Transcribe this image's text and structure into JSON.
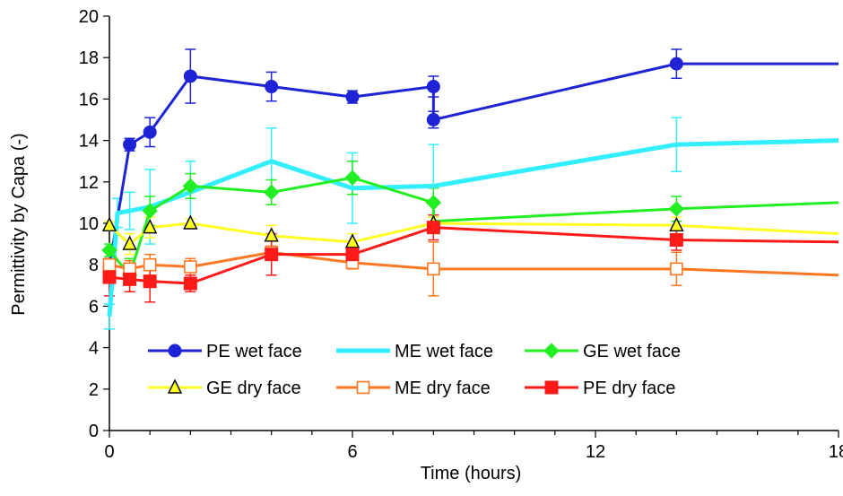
{
  "chart_data": {
    "type": "line",
    "xlabel": "Time (hours)",
    "ylabel": "Permittivity by Capa (-)",
    "xlim": [
      0,
      18
    ],
    "ylim": [
      0,
      20
    ],
    "xticks": [
      0,
      6,
      12,
      18
    ],
    "yticks": [
      0,
      2,
      4,
      6,
      8,
      10,
      12,
      14,
      16,
      18,
      20
    ],
    "grid": false,
    "legend": {
      "placement": "bottom-center"
    },
    "series": [
      {
        "name": "PE wet face",
        "color": "#1f23d6",
        "marker": "circle-filled",
        "lineWidth": "normal",
        "x": [
          0,
          0.5,
          1,
          2,
          4,
          6,
          8,
          8,
          14,
          18
        ],
        "y": [
          7.9,
          13.8,
          14.4,
          17.1,
          16.6,
          16.1,
          16.6,
          15.0,
          17.7,
          17.7
        ],
        "err": [
          0.3,
          0.3,
          0.7,
          1.3,
          0.7,
          0.3,
          0.5,
          0.4,
          0.7,
          0
        ],
        "markers": [
          true,
          true,
          true,
          true,
          true,
          true,
          true,
          true,
          true,
          false
        ]
      },
      {
        "name": "ME wet face",
        "color": "#33eeff",
        "marker": "none",
        "lineWidth": "thick",
        "x": [
          0,
          0.2,
          0.5,
          1,
          2,
          4,
          6,
          8,
          14,
          18
        ],
        "y": [
          5.5,
          10.5,
          10.6,
          10.8,
          11.5,
          13.0,
          11.7,
          11.8,
          13.8,
          14.0
        ],
        "err": [
          0.6,
          0.7,
          0.9,
          1.8,
          1.5,
          1.6,
          1.7,
          2.0,
          1.3,
          0
        ],
        "markers": [
          false,
          false,
          false,
          false,
          false,
          false,
          false,
          false,
          false,
          false
        ]
      },
      {
        "name": "GE wet face",
        "color": "#22ee22",
        "marker": "diamond-filled",
        "lineWidth": "normal",
        "x": [
          0,
          0.5,
          1,
          2,
          4,
          6,
          8,
          8,
          14,
          18
        ],
        "y": [
          8.7,
          7.5,
          10.6,
          11.8,
          11.5,
          12.2,
          11.0,
          10.1,
          10.7,
          11.0
        ],
        "err": [
          0.3,
          0.8,
          0.7,
          0.6,
          0.6,
          0.8,
          0.7,
          0,
          0.6,
          0
        ],
        "markers": [
          true,
          true,
          true,
          true,
          true,
          true,
          true,
          false,
          true,
          false
        ]
      },
      {
        "name": "GE dry face",
        "color": "#ffff22",
        "marker": "triangle-open",
        "lineWidth": "normal",
        "x": [
          0,
          0.5,
          1,
          2,
          4,
          6,
          8,
          14,
          18
        ],
        "y": [
          9.9,
          9.0,
          9.8,
          10.0,
          9.4,
          9.1,
          10.0,
          9.9,
          9.5
        ],
        "err": [
          0.2,
          0.5,
          0.5,
          0.2,
          0.5,
          0.4,
          0.3,
          0.4,
          0
        ],
        "markers": [
          true,
          true,
          true,
          true,
          true,
          true,
          true,
          true,
          false
        ]
      },
      {
        "name": "ME dry face",
        "color": "#ff7722",
        "marker": "square-open",
        "lineWidth": "normal",
        "x": [
          0,
          0.5,
          1,
          2,
          4,
          6,
          8,
          14,
          18
        ],
        "y": [
          8.0,
          7.8,
          8.0,
          7.9,
          8.6,
          8.1,
          7.8,
          7.8,
          7.5
        ],
        "err": [
          0.3,
          0.4,
          0.5,
          0.4,
          0.3,
          0.3,
          1.3,
          0.8,
          0
        ],
        "markers": [
          true,
          true,
          true,
          true,
          true,
          true,
          true,
          true,
          false
        ]
      },
      {
        "name": "PE dry face",
        "color": "#ff1a1a",
        "marker": "square-filled",
        "lineWidth": "normal",
        "x": [
          0,
          0.5,
          1,
          2,
          4,
          6,
          8,
          14,
          18
        ],
        "y": [
          7.4,
          7.3,
          7.2,
          7.1,
          8.5,
          8.5,
          9.8,
          9.2,
          9.1
        ],
        "err": [
          0.9,
          0.6,
          1.0,
          0.4,
          1.0,
          0.5,
          0.6,
          0.5,
          0
        ],
        "markers": [
          true,
          true,
          true,
          true,
          true,
          true,
          true,
          true,
          false
        ]
      }
    ]
  }
}
